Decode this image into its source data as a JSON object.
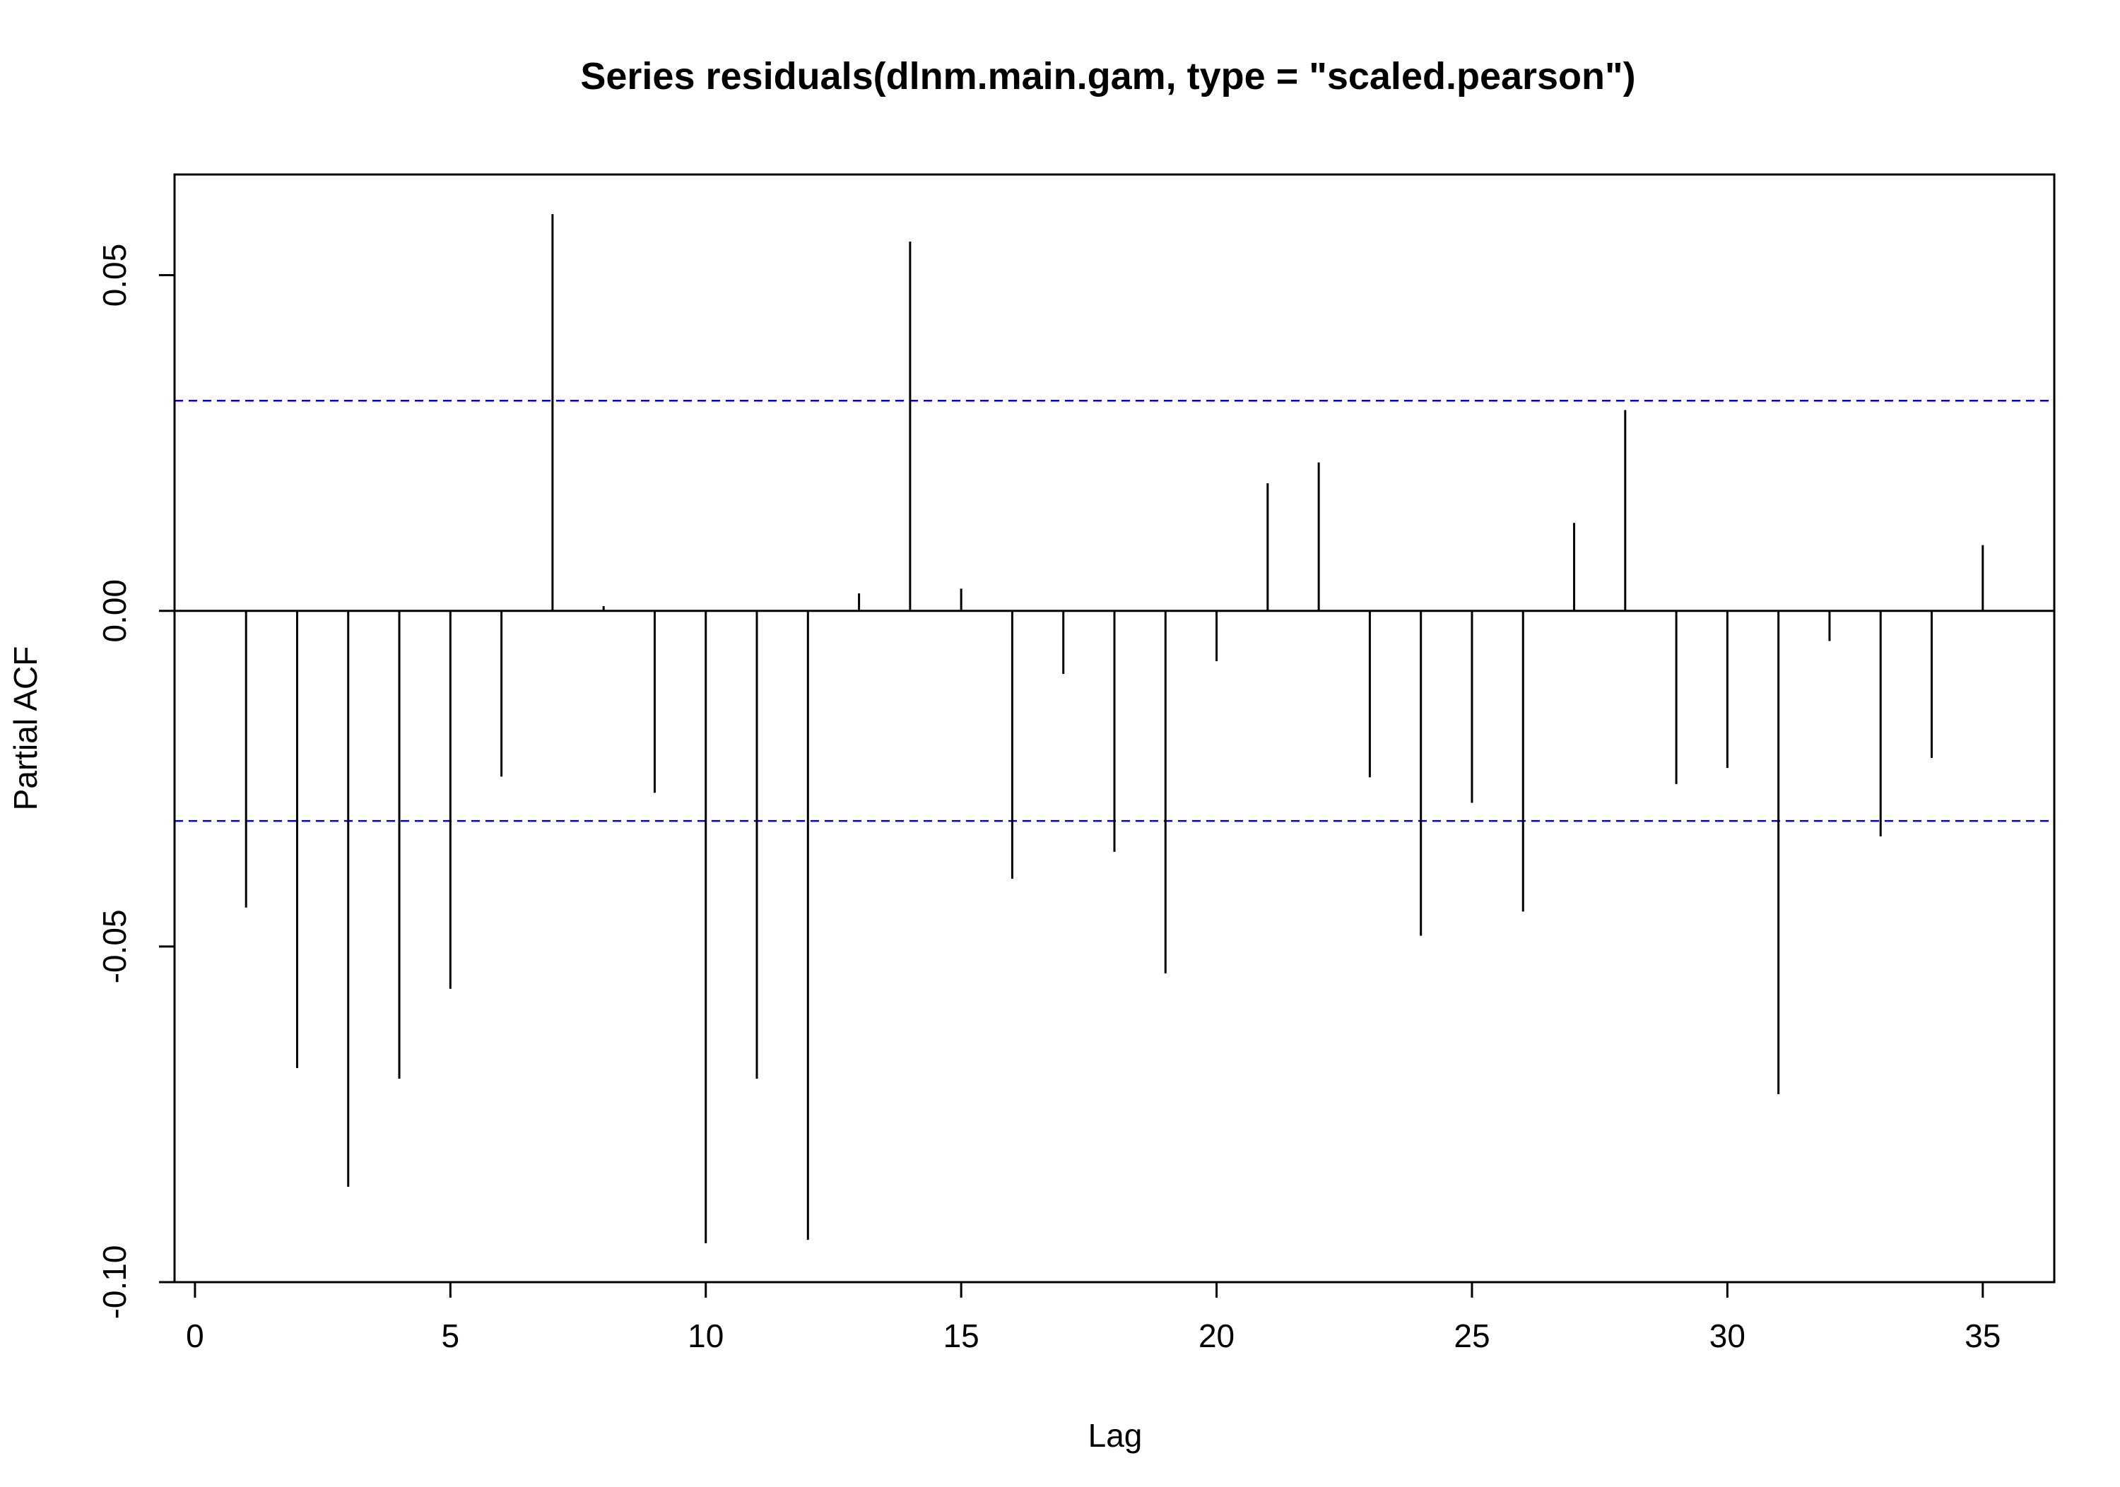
{
  "chart_data": {
    "type": "bar",
    "title": "Series  residuals(dlnm.main.gam, type = \"scaled.pearson\")",
    "xlabel": "Lag",
    "ylabel": "Partial ACF",
    "xlim": [
      -0.4,
      36.4
    ],
    "ylim": [
      -0.1,
      0.065
    ],
    "x_ticks": [
      0,
      5,
      10,
      15,
      20,
      25,
      30,
      35
    ],
    "x_tick_labels": [
      "0",
      "5",
      "10",
      "15",
      "20",
      "25",
      "30",
      "35"
    ],
    "y_ticks": [
      -0.1,
      -0.05,
      0,
      0.05
    ],
    "y_tick_labels": [
      "-0.10",
      "-0.05",
      "0.00",
      "0.05"
    ],
    "grid": false,
    "legend": "none",
    "series": [
      {
        "lags": [
          1,
          2,
          3,
          4,
          5,
          6,
          7,
          8,
          9,
          10,
          11,
          12,
          13,
          14,
          15,
          16,
          17,
          18,
          19,
          20,
          21,
          22,
          23,
          24,
          25,
          26,
          27,
          28,
          29,
          30,
          31,
          32,
          33,
          34,
          35
        ],
        "values": [
          -0.0442,
          -0.0681,
          -0.0858,
          -0.0697,
          -0.0563,
          -0.0247,
          0.0591,
          0.0007,
          -0.0271,
          -0.0942,
          -0.0697,
          -0.0937,
          0.0026,
          0.055,
          0.0033,
          -0.0399,
          -0.0094,
          -0.0359,
          -0.054,
          -0.0075,
          0.019,
          0.0221,
          -0.0248,
          -0.0484,
          -0.0286,
          -0.0448,
          0.0131,
          0.0299,
          -0.0258,
          -0.0234,
          -0.072,
          -0.0045,
          -0.0336,
          -0.0219,
          0.0098
        ]
      }
    ],
    "confidence_band": [
      -0.0313,
      0.0313
    ],
    "colors": {
      "bars": "#000000",
      "confidence_band": "#0000cc",
      "zero_line": "#000000",
      "frame": "#000000"
    }
  }
}
